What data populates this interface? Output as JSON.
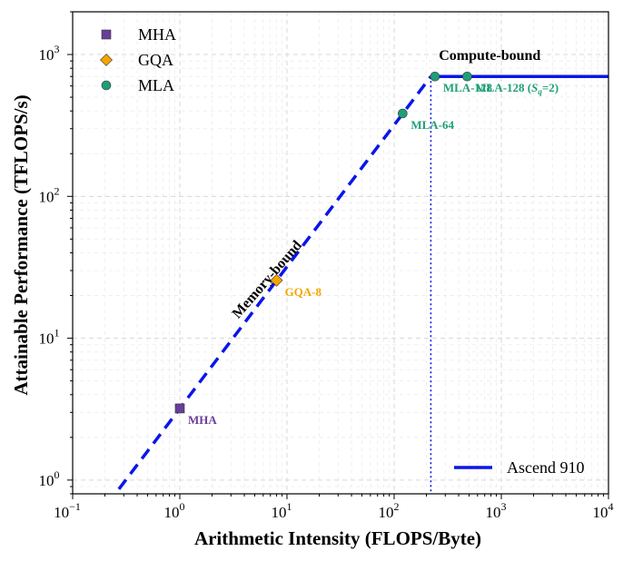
{
  "chart_data": {
    "type": "line",
    "xscale": "log",
    "yscale": "log",
    "xlim": [
      0.1,
      10000
    ],
    "ylim": [
      0.8,
      2000
    ],
    "xlabel": "Arithmetic Intensity (FLOPS/Byte)",
    "ylabel": "Attainable Performance (TFLOPS/s)",
    "x_ticks": [
      {
        "value": 0.1,
        "base": "10",
        "exp": "−1"
      },
      {
        "value": 1,
        "base": "10",
        "exp": "0"
      },
      {
        "value": 10,
        "base": "10",
        "exp": "1"
      },
      {
        "value": 100,
        "base": "10",
        "exp": "2"
      },
      {
        "value": 1000,
        "base": "10",
        "exp": "3"
      },
      {
        "value": 10000,
        "base": "10",
        "exp": "4"
      }
    ],
    "y_ticks": [
      {
        "value": 1,
        "base": "10",
        "exp": "0"
      },
      {
        "value": 10,
        "base": "10",
        "exp": "1"
      },
      {
        "value": 100,
        "base": "10",
        "exp": "2"
      },
      {
        "value": 1000,
        "base": "10",
        "exp": "3"
      }
    ],
    "grid": true,
    "roofline": {
      "name": "Ascend 910",
      "color": "#0a16e8",
      "memory_slope": 3.2,
      "memory_x_range": [
        0.27,
        220
      ],
      "peak": 700,
      "ridge_x": 220,
      "compute_x_range": [
        220,
        10000
      ]
    },
    "series": [
      {
        "name": "MHA",
        "marker": "square",
        "color": "#6a3d9a",
        "points": [
          {
            "x": 1,
            "y": 3.2,
            "label": "MHA"
          }
        ]
      },
      {
        "name": "GQA",
        "marker": "diamond",
        "color": "#f5a500",
        "points": [
          {
            "x": 8,
            "y": 25.6,
            "label": "GQA-8"
          }
        ]
      },
      {
        "name": "MLA",
        "marker": "circle",
        "color": "#1f9e77",
        "points": [
          {
            "x": 120,
            "y": 384,
            "label": "MLA-64"
          },
          {
            "x": 240,
            "y": 700,
            "label": "MLA-128"
          },
          {
            "x": 480,
            "y": 700,
            "label": "MLA-128 (",
            "label_sub_main": "S",
            "label_sub": "q",
            "label_tail": "=2)"
          }
        ]
      }
    ],
    "annotations": {
      "memory_bound": "Memory-bound",
      "compute_bound": "Compute-bound"
    },
    "legend_top_left": [
      "MHA",
      "GQA",
      "MLA"
    ],
    "legend_bottom_right": "Ascend 910"
  }
}
